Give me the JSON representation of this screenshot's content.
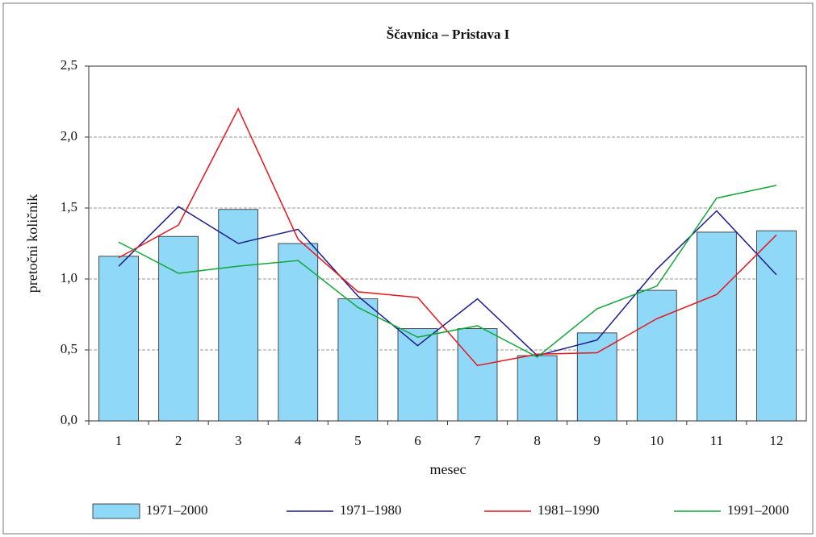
{
  "chart_data": {
    "type": "bar",
    "title": "Ščavnica – Pristava I",
    "x_label": "mesec",
    "y_label": "pretočni količnik",
    "categories": [
      "1",
      "2",
      "3",
      "4",
      "5",
      "6",
      "7",
      "8",
      "9",
      "10",
      "11",
      "12"
    ],
    "series": [
      {
        "name": "1971–2000",
        "type": "bar",
        "color": "#8fd8f8",
        "values": [
          1.16,
          1.3,
          1.49,
          1.25,
          0.86,
          0.65,
          0.65,
          0.46,
          0.62,
          0.92,
          1.33,
          1.34
        ]
      },
      {
        "name": "1971–1980",
        "type": "line",
        "color": "#1c1c8c",
        "values": [
          1.09,
          1.51,
          1.25,
          1.35,
          0.88,
          0.53,
          0.86,
          0.46,
          0.57,
          1.07,
          1.48,
          1.03
        ]
      },
      {
        "name": "1981–1990",
        "type": "line",
        "color": "#e8141c",
        "values": [
          1.15,
          1.38,
          2.2,
          1.28,
          0.91,
          0.87,
          0.39,
          0.47,
          0.48,
          0.72,
          0.89,
          1.31
        ]
      },
      {
        "name": "1991–2000",
        "type": "line",
        "color": "#12a838",
        "values": [
          1.26,
          1.04,
          1.09,
          1.13,
          0.8,
          0.59,
          0.67,
          0.45,
          0.79,
          0.95,
          1.57,
          1.66
        ]
      }
    ],
    "ylim": [
      0,
      2.5
    ],
    "yticks": [
      {
        "value": 0,
        "label": "0,0"
      },
      {
        "value": 0.5,
        "label": "0,5"
      },
      {
        "value": 1,
        "label": "1,0"
      },
      {
        "value": 1.5,
        "label": "1,5"
      },
      {
        "value": 2,
        "label": "2,0"
      },
      {
        "value": 2.5,
        "label": "2,5"
      }
    ],
    "grid": true,
    "legend": "bottom"
  }
}
